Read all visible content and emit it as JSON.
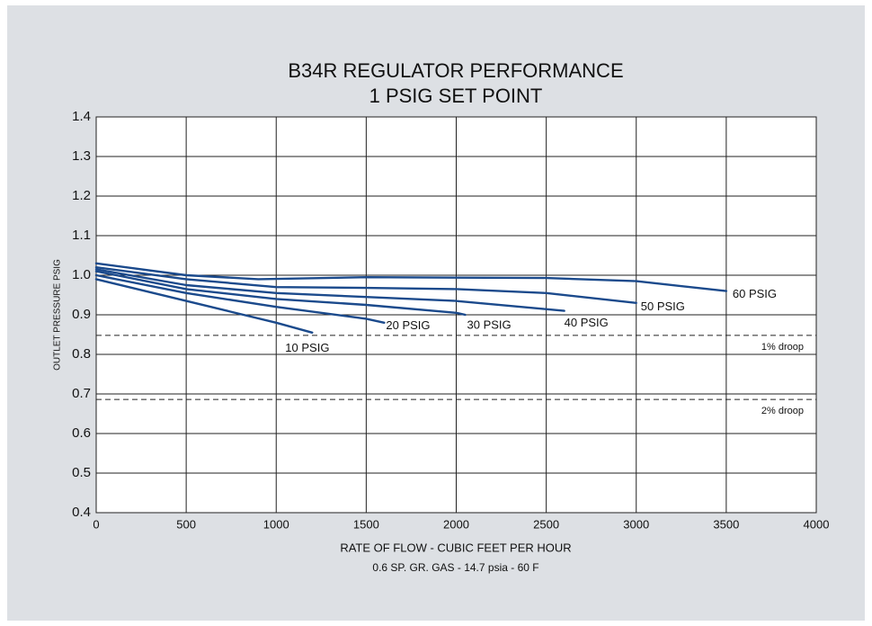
{
  "chart_data": {
    "type": "line",
    "title": "B34R REGULATOR PERFORMANCE",
    "subtitle": "1 PSIG SET POINT",
    "x_label": "RATE OF FLOW - CUBIC FEET PER HOUR",
    "x_note": "0.6 SP. GR. GAS - 14.7 psia - 60 F",
    "y_label": "OUTLET PRESSURE PSIG",
    "xlim": [
      0,
      4000
    ],
    "xticks": [
      0,
      500,
      1000,
      1500,
      2000,
      2500,
      3000,
      3500,
      4000
    ],
    "ylim": [
      0.4,
      1.4
    ],
    "yticks": [
      0.4,
      0.5,
      0.6,
      0.7,
      0.8,
      0.9,
      {
        "value": 1,
        "label": "1.0"
      },
      1.1,
      1.2,
      1.3,
      1.4
    ],
    "grid": true,
    "series": [
      {
        "name": "10 PSIG",
        "color": "#1b4a8c",
        "x": [
          0,
          500,
          1000,
          1200
        ],
        "values": [
          0.99,
          0.935,
          0.88,
          0.855
        ]
      },
      {
        "name": "20 PSIG",
        "color": "#1b4a8c",
        "x": [
          0,
          500,
          1000,
          1500,
          1600
        ],
        "values": [
          1.0,
          0.955,
          0.92,
          0.89,
          0.88
        ]
      },
      {
        "name": "30 PSIG",
        "color": "#1b4a8c",
        "x": [
          0,
          500,
          1000,
          1500,
          2000,
          2050
        ],
        "values": [
          1.01,
          0.965,
          0.94,
          0.925,
          0.905,
          0.9
        ]
      },
      {
        "name": "40 PSIG",
        "color": "#1b4a8c",
        "x": [
          0,
          500,
          1000,
          1500,
          2000,
          2600
        ],
        "values": [
          1.015,
          0.975,
          0.955,
          0.945,
          0.935,
          0.91
        ]
      },
      {
        "name": "50 PSIG",
        "color": "#1b4a8c",
        "x": [
          0,
          500,
          1000,
          1500,
          2000,
          2500,
          3000
        ],
        "values": [
          1.02,
          0.99,
          0.97,
          0.968,
          0.965,
          0.955,
          0.93
        ]
      },
      {
        "name": "60 PSIG",
        "color": "#1b4a8c",
        "x": [
          0,
          500,
          900,
          1500,
          2500,
          3000,
          3500
        ],
        "values": [
          1.03,
          1.0,
          0.99,
          0.995,
          0.993,
          0.985,
          0.96
        ]
      }
    ],
    "annotations": [
      {
        "text": "1% droop",
        "value": 0.848
      },
      {
        "text": "2% droop",
        "value": 0.686
      }
    ]
  }
}
